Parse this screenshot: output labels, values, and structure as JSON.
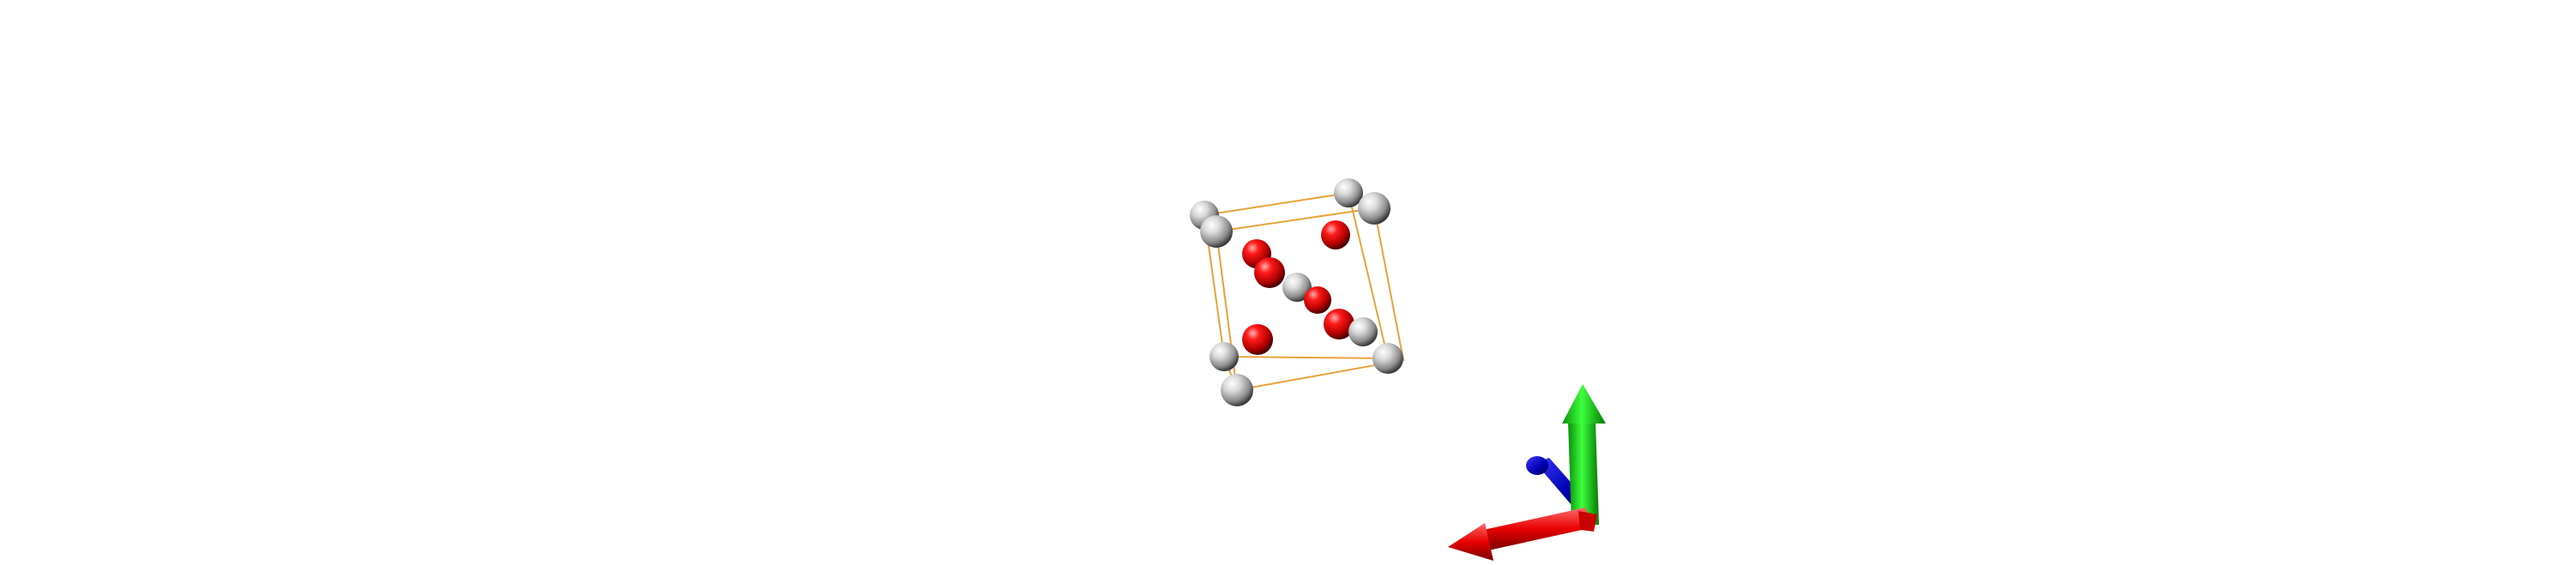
{
  "scene": {
    "background": "#ffffff",
    "unit_cell_color": "#e8a23a",
    "atom_colors": {
      "white": "#c8c8c8",
      "red": "#e60000"
    },
    "axis_colors": {
      "x": "#e50000",
      "y": "#00c800",
      "z": "#0000c8"
    }
  }
}
